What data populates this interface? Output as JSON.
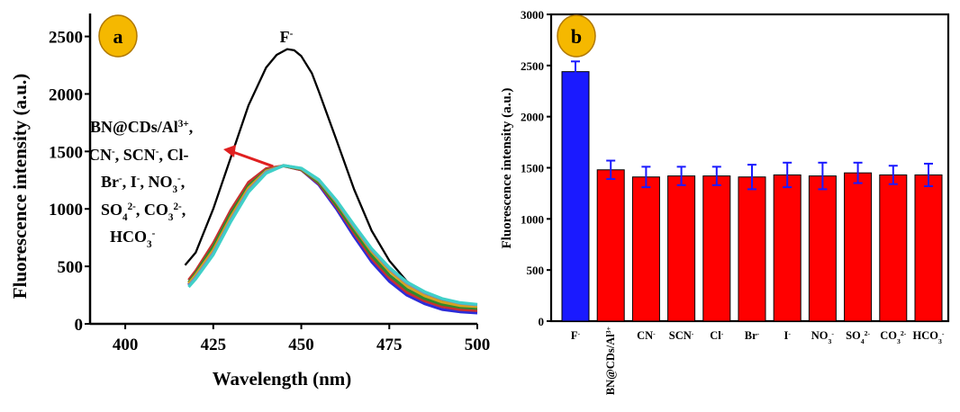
{
  "chart_data": [
    {
      "type": "line",
      "panel_label": "a",
      "xlabel": "Wavelength (nm)",
      "ylabel": "Fluorescence intensity (a.u.)",
      "xlim": [
        390,
        500
      ],
      "ylim": [
        0,
        2700
      ],
      "x_ticks": [
        "400",
        "425",
        "450",
        "475",
        "500"
      ],
      "y_ticks": [
        "0",
        "500",
        "1000",
        "1500",
        "2000",
        "2500"
      ],
      "peak_label": {
        "ion": "F",
        "sup": "-"
      },
      "annotation_lines": [
        [
          {
            "t": "BN@CDs/Al"
          },
          {
            "t": "3+",
            "sup": true
          },
          {
            "t": ","
          }
        ],
        [
          {
            "t": "CN"
          },
          {
            "t": "-",
            "sup": true
          },
          {
            "t": ", SCN"
          },
          {
            "t": "-",
            "sup": true
          },
          {
            "t": ", Cl-"
          }
        ],
        [
          {
            "t": "Br"
          },
          {
            "t": "-",
            "sup": true
          },
          {
            "t": ", I"
          },
          {
            "t": "-",
            "sup": true
          },
          {
            "t": ", NO"
          },
          {
            "t": "3",
            "sub": true
          },
          {
            "t": "-",
            "sup": true
          },
          {
            "t": ","
          }
        ],
        [
          {
            "t": "SO"
          },
          {
            "t": "4",
            "sub": true
          },
          {
            "t": "2-",
            "sup": true
          },
          {
            "t": ", CO"
          },
          {
            "t": "3",
            "sub": true
          },
          {
            "t": "2-",
            "sup": true
          },
          {
            "t": ","
          }
        ],
        [
          {
            "t": "HCO"
          },
          {
            "t": "3",
            "sub": true
          },
          {
            "t": "-",
            "sup": true
          }
        ]
      ],
      "series": [
        {
          "name": "F-",
          "color": "#000000",
          "x": [
            417,
            420,
            425,
            430,
            435,
            440,
            443,
            446,
            448,
            450,
            453,
            455,
            460,
            465,
            470,
            475,
            480,
            485,
            490,
            495,
            500
          ],
          "y": [
            510,
            620,
            1000,
            1450,
            1900,
            2230,
            2340,
            2390,
            2380,
            2330,
            2180,
            2020,
            1600,
            1170,
            810,
            550,
            370,
            260,
            200,
            170,
            160
          ]
        },
        {
          "color": "#2c2cd8",
          "x": [
            418,
            420,
            425,
            430,
            435,
            440,
            445,
            450,
            455,
            460,
            465,
            470,
            475,
            480,
            485,
            490,
            495,
            500
          ],
          "y": [
            340,
            420,
            640,
            920,
            1170,
            1320,
            1375,
            1340,
            1210,
            1000,
            760,
            540,
            370,
            250,
            175,
            125,
            105,
            95
          ]
        },
        {
          "color": "#c83030",
          "x": [
            418,
            420,
            425,
            430,
            435,
            440,
            445,
            450,
            455,
            460,
            465,
            470,
            475,
            480,
            485,
            490,
            495,
            500
          ],
          "y": [
            380,
            460,
            700,
            990,
            1230,
            1350,
            1375,
            1340,
            1220,
            1020,
            790,
            570,
            400,
            275,
            200,
            150,
            125,
            115
          ]
        },
        {
          "color": "#2d8a2d",
          "x": [
            418,
            420,
            425,
            430,
            435,
            440,
            445,
            450,
            455,
            460,
            465,
            470,
            475,
            480,
            485,
            490,
            495,
            500
          ],
          "y": [
            360,
            440,
            670,
            960,
            1200,
            1335,
            1375,
            1345,
            1230,
            1035,
            810,
            595,
            425,
            300,
            220,
            170,
            145,
            135
          ]
        },
        {
          "color": "#d8a020",
          "x": [
            418,
            420,
            425,
            430,
            435,
            440,
            445,
            450,
            455,
            460,
            465,
            470,
            475,
            480,
            485,
            490,
            495,
            500
          ],
          "y": [
            350,
            425,
            640,
            930,
            1180,
            1330,
            1378,
            1350,
            1245,
            1060,
            840,
            630,
            460,
            330,
            245,
            190,
            160,
            150
          ]
        },
        {
          "color": "#7a8fbf",
          "x": [
            418,
            420,
            425,
            430,
            435,
            440,
            445,
            450,
            455,
            460,
            465,
            470,
            475,
            480,
            485,
            490,
            495,
            500
          ],
          "y": [
            330,
            405,
            615,
            905,
            1160,
            1320,
            1378,
            1352,
            1250,
            1068,
            850,
            645,
            480,
            355,
            270,
            215,
            180,
            165
          ]
        },
        {
          "color": "#3fd0c8",
          "x": [
            418,
            420,
            425,
            430,
            435,
            440,
            445,
            450,
            455,
            460,
            465,
            470,
            475,
            480,
            485,
            490,
            495,
            500
          ],
          "y": [
            320,
            390,
            600,
            890,
            1145,
            1310,
            1377,
            1355,
            1255,
            1075,
            860,
            655,
            490,
            365,
            280,
            220,
            185,
            170
          ]
        }
      ],
      "colors": {
        "arrow": "#e02020",
        "badge_fill": "#f5b800",
        "badge_stroke": "#b07800"
      }
    },
    {
      "type": "bar",
      "panel_label": "b",
      "ylabel": "Fluorescence intensity (a.u.)",
      "ylim": [
        0,
        3000
      ],
      "y_ticks": [
        "0",
        "500",
        "1000",
        "1500",
        "2000",
        "2500",
        "3000"
      ],
      "categories": [
        [
          {
            "t": "F"
          },
          {
            "t": "-",
            "sup": true
          }
        ],
        [
          {
            "t": "BN@CDs/Al"
          },
          {
            "t": "3+",
            "sup": true
          }
        ],
        [
          {
            "t": "CN"
          },
          {
            "t": "-",
            "sup": true
          }
        ],
        [
          {
            "t": "SCN"
          },
          {
            "t": "-",
            "sup": true
          }
        ],
        [
          {
            "t": "Cl"
          },
          {
            "t": "-",
            "sup": true
          }
        ],
        [
          {
            "t": "Br"
          },
          {
            "t": "-",
            "sup": true
          }
        ],
        [
          {
            "t": "I"
          },
          {
            "t": "-",
            "sup": true
          }
        ],
        [
          {
            "t": "NO"
          },
          {
            "t": "3",
            "sub": true
          },
          {
            "t": "-",
            "sup": true
          }
        ],
        [
          {
            "t": "SO"
          },
          {
            "t": "4",
            "sub": true
          },
          {
            "t": "2-",
            "sup": true
          }
        ],
        [
          {
            "t": "CO"
          },
          {
            "t": "3",
            "sub": true
          },
          {
            "t": "2-",
            "sup": true
          }
        ],
        [
          {
            "t": "HCO"
          },
          {
            "t": "3",
            "sub": true
          },
          {
            "t": "-",
            "sup": true
          }
        ]
      ],
      "values": [
        2440,
        1480,
        1410,
        1420,
        1420,
        1410,
        1430,
        1420,
        1450,
        1430,
        1430
      ],
      "errors": [
        100,
        90,
        100,
        90,
        90,
        120,
        120,
        130,
        100,
        90,
        110
      ],
      "bar_colors": [
        "#1a1aff",
        "#ff0000",
        "#ff0000",
        "#ff0000",
        "#ff0000",
        "#ff0000",
        "#ff0000",
        "#ff0000",
        "#ff0000",
        "#ff0000",
        "#ff0000"
      ],
      "colors": {
        "error_bar": "#1a1aff",
        "badge_fill": "#f5b800",
        "badge_stroke": "#b07800"
      }
    }
  ]
}
